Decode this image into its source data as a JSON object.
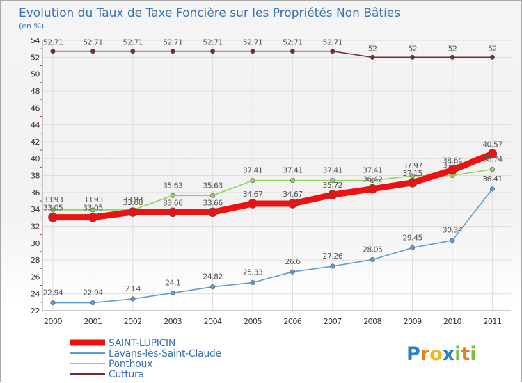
{
  "chart_data": {
    "type": "line",
    "title": "Evolution du Taux de Taxe Foncière sur les Propriétés Non Bâties",
    "ylabel": "(en %)",
    "xlabel": "",
    "ylim": [
      22,
      54
    ],
    "y_ticks": [
      22,
      24,
      26,
      28,
      30,
      32,
      34,
      36,
      38,
      40,
      42,
      44,
      46,
      48,
      50,
      52,
      54
    ],
    "categories": [
      "2000",
      "2001",
      "2002",
      "2003",
      "2004",
      "2005",
      "2006",
      "2007",
      "2008",
      "2009",
      "2010",
      "2011"
    ],
    "series": [
      {
        "name": "Cuttura",
        "color": "#7a2a2a",
        "values": [
          52.71,
          52.71,
          52.71,
          52.71,
          52.71,
          52.71,
          52.71,
          52.71,
          52,
          52,
          52,
          52
        ],
        "labels": [
          "52.71",
          "52.71",
          "52.71",
          "52.71",
          "52.71",
          "52.71",
          "52.71",
          "52.71",
          "52",
          "52",
          "52",
          "52"
        ]
      },
      {
        "name": "Ponthoux",
        "color": "#8fd45a",
        "values": [
          33.93,
          33.93,
          33.93,
          35.63,
          35.63,
          37.41,
          37.41,
          37.41,
          37.41,
          37.97,
          38.0,
          38.74
        ],
        "labels": [
          "33.93",
          "33.93",
          "33.93",
          "35.63",
          "35.63",
          "37.41",
          "37.41",
          "37.41",
          "37.41",
          "37.97",
          "37.97",
          "38.74"
        ]
      },
      {
        "name": "Lavans-lès-Saint-Claude",
        "color": "#5b9bd5",
        "values": [
          22.94,
          22.94,
          23.4,
          24.1,
          24.82,
          25.33,
          26.6,
          27.26,
          28.05,
          29.45,
          30.34,
          36.41
        ],
        "labels": [
          "22.94",
          "22.94",
          "23.4",
          "24.1",
          "24.82",
          "25.33",
          "26.6",
          "27.26",
          "28.05",
          "29.45",
          "30.34",
          "36.41"
        ]
      },
      {
        "name": "SAINT-LUPICIN",
        "color": "#ee1111",
        "values": [
          33.05,
          33.05,
          33.68,
          33.66,
          33.66,
          34.67,
          34.67,
          35.72,
          36.42,
          37.15,
          38.64,
          40.57
        ],
        "labels": [
          "33.05",
          "33.05",
          "33.68",
          "33.66",
          "33.66",
          "34.67",
          "34.67",
          "35.72",
          "36.42",
          "37.15",
          "38.64",
          "40.57"
        ]
      }
    ],
    "legend": [
      "SAINT-LUPICIN",
      "Lavans-lès-Saint-Claude",
      "Ponthoux",
      "Cuttura"
    ],
    "grid": true
  },
  "logo": {
    "text": "Proxiti",
    "letters": [
      "P",
      "r",
      "o",
      "x",
      "i",
      "t",
      "i"
    ]
  }
}
